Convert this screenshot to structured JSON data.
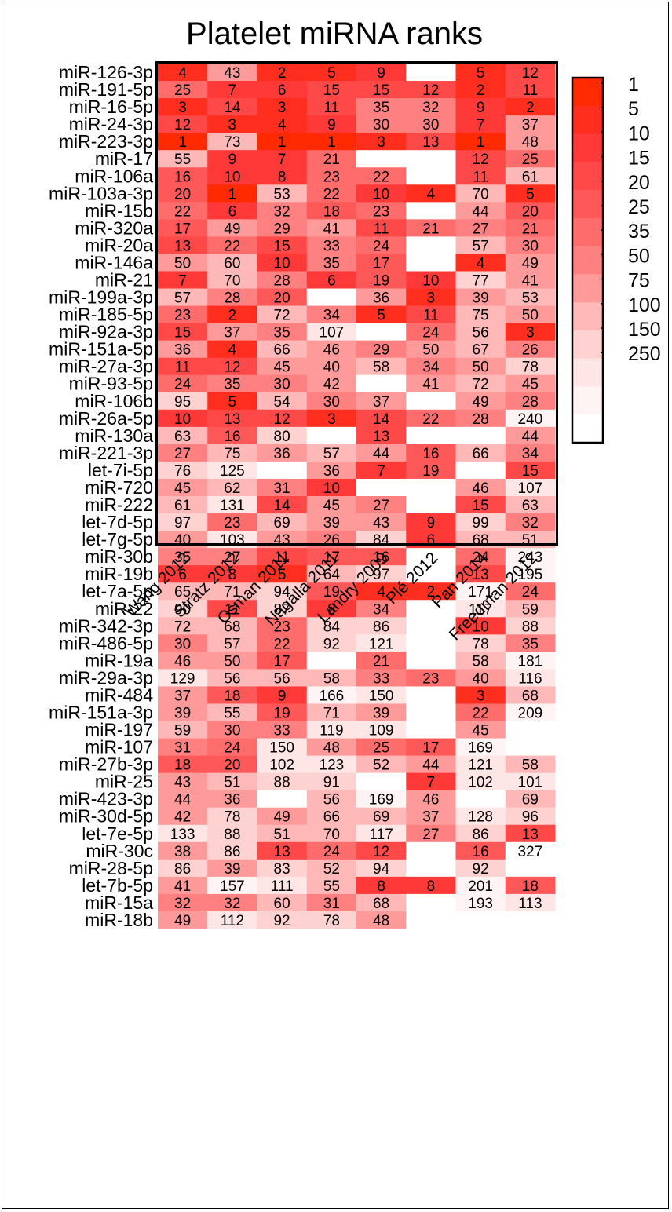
{
  "chart_data": {
    "type": "heatmap",
    "title": "Platelet miRNA ranks",
    "columns": [
      "Wang 2012",
      "Stratz 2012",
      "Osman 2011",
      "Nagalla 2011",
      "Landry 2009",
      "Plé 2012",
      "Pan 2014",
      "Freedman 2012"
    ],
    "rows": [
      {
        "label": "miR-126-3p",
        "values": [
          4,
          43,
          2,
          5,
          9,
          null,
          5,
          12
        ]
      },
      {
        "label": "miR-191-5p",
        "values": [
          25,
          7,
          6,
          15,
          15,
          12,
          2,
          11
        ]
      },
      {
        "label": "miR-16-5p",
        "values": [
          3,
          14,
          3,
          11,
          35,
          32,
          9,
          2
        ]
      },
      {
        "label": "miR-24-3p",
        "values": [
          12,
          3,
          4,
          9,
          30,
          30,
          7,
          37
        ]
      },
      {
        "label": "miR-223-3p",
        "values": [
          1,
          73,
          1,
          1,
          3,
          13,
          1,
          48
        ]
      },
      {
        "label": "miR-17",
        "values": [
          55,
          9,
          7,
          21,
          null,
          null,
          12,
          25
        ]
      },
      {
        "label": "miR-106a",
        "values": [
          16,
          10,
          8,
          23,
          22,
          null,
          11,
          61
        ]
      },
      {
        "label": "miR-103a-3p",
        "values": [
          20,
          1,
          53,
          22,
          10,
          4,
          70,
          5
        ]
      },
      {
        "label": "miR-15b",
        "values": [
          22,
          6,
          32,
          18,
          23,
          null,
          44,
          20
        ]
      },
      {
        "label": "miR-320a",
        "values": [
          17,
          49,
          29,
          41,
          11,
          21,
          27,
          21
        ]
      },
      {
        "label": "miR-20a",
        "values": [
          13,
          22,
          15,
          33,
          24,
          null,
          57,
          30
        ]
      },
      {
        "label": "miR-146a",
        "values": [
          50,
          60,
          10,
          35,
          17,
          null,
          4,
          49
        ]
      },
      {
        "label": "miR-21",
        "values": [
          7,
          70,
          28,
          6,
          19,
          10,
          77,
          41
        ]
      },
      {
        "label": "miR-199a-3p",
        "values": [
          57,
          28,
          20,
          null,
          36,
          3,
          39,
          53
        ]
      },
      {
        "label": "miR-185-5p",
        "values": [
          23,
          2,
          72,
          34,
          5,
          11,
          75,
          50
        ]
      },
      {
        "label": "miR-92a-3p",
        "values": [
          15,
          37,
          35,
          107,
          null,
          24,
          56,
          3
        ]
      },
      {
        "label": "miR-151a-5p",
        "values": [
          36,
          4,
          66,
          46,
          29,
          50,
          67,
          26
        ]
      },
      {
        "label": "miR-27a-3p",
        "values": [
          11,
          12,
          45,
          40,
          58,
          34,
          50,
          78
        ]
      },
      {
        "label": "miR-93-5p",
        "values": [
          24,
          35,
          30,
          42,
          null,
          41,
          72,
          45
        ]
      },
      {
        "label": "miR-106b",
        "values": [
          95,
          5,
          54,
          30,
          37,
          null,
          49,
          28
        ]
      },
      {
        "label": "miR-26a-5p",
        "values": [
          10,
          13,
          12,
          3,
          14,
          22,
          28,
          240
        ]
      },
      {
        "label": "miR-130a",
        "values": [
          63,
          16,
          80,
          null,
          13,
          null,
          null,
          44
        ]
      },
      {
        "label": "miR-221-3p",
        "values": [
          27,
          75,
          36,
          57,
          44,
          16,
          66,
          34
        ]
      },
      {
        "label": "let-7i-5p",
        "values": [
          76,
          125,
          null,
          36,
          7,
          19,
          null,
          15
        ]
      },
      {
        "label": "miR-720",
        "values": [
          45,
          62,
          31,
          10,
          null,
          null,
          46,
          107
        ]
      },
      {
        "label": "miR-222",
        "values": [
          61,
          131,
          14,
          45,
          27,
          null,
          15,
          63
        ]
      },
      {
        "label": "let-7d-5p",
        "values": [
          97,
          23,
          69,
          39,
          43,
          9,
          99,
          32
        ]
      },
      {
        "label": "let-7g-5p",
        "values": [
          40,
          103,
          43,
          26,
          84,
          6,
          68,
          51
        ]
      },
      {
        "label": "miR-30b",
        "values": [
          35,
          27,
          11,
          17,
          16,
          null,
          24,
          243
        ]
      },
      {
        "label": "miR-19b",
        "values": [
          6,
          8,
          5,
          64,
          97,
          null,
          13,
          195
        ]
      },
      {
        "label": "let-7a-5p",
        "values": [
          65,
          71,
          94,
          19,
          4,
          2,
          171,
          24
        ]
      },
      {
        "label": "miR-22",
        "values": [
          90,
          11,
          87,
          8,
          34,
          null,
          117,
          59
        ]
      },
      {
        "label": "miR-342-3p",
        "values": [
          72,
          68,
          23,
          84,
          86,
          null,
          10,
          88
        ]
      },
      {
        "label": "miR-486-5p",
        "values": [
          30,
          57,
          22,
          92,
          121,
          null,
          78,
          35
        ]
      },
      {
        "label": "miR-19a",
        "values": [
          46,
          50,
          17,
          null,
          21,
          null,
          58,
          181
        ]
      },
      {
        "label": "miR-29a-3p",
        "values": [
          129,
          56,
          56,
          58,
          33,
          23,
          40,
          116
        ]
      },
      {
        "label": "miR-484",
        "values": [
          37,
          18,
          9,
          166,
          150,
          null,
          3,
          68
        ]
      },
      {
        "label": "miR-151a-3p",
        "values": [
          39,
          55,
          19,
          71,
          39,
          null,
          22,
          209
        ]
      },
      {
        "label": "miR-197",
        "values": [
          59,
          30,
          33,
          119,
          109,
          null,
          45,
          null
        ]
      },
      {
        "label": "miR-107",
        "values": [
          31,
          24,
          150,
          48,
          25,
          17,
          169,
          null
        ]
      },
      {
        "label": "miR-27b-3p",
        "values": [
          18,
          20,
          102,
          123,
          52,
          44,
          121,
          58
        ]
      },
      {
        "label": "miR-25",
        "values": [
          43,
          51,
          88,
          91,
          null,
          7,
          102,
          101
        ]
      },
      {
        "label": "miR-423-3p",
        "values": [
          44,
          36,
          null,
          56,
          169,
          46,
          null,
          69
        ]
      },
      {
        "label": "miR-30d-5p",
        "values": [
          42,
          78,
          49,
          66,
          69,
          37,
          128,
          96
        ]
      },
      {
        "label": "let-7e-5p",
        "values": [
          133,
          88,
          51,
          70,
          117,
          27,
          86,
          13
        ]
      },
      {
        "label": "miR-30c",
        "values": [
          38,
          86,
          13,
          24,
          12,
          null,
          16,
          327
        ]
      },
      {
        "label": "miR-28-5p",
        "values": [
          86,
          39,
          83,
          52,
          94,
          null,
          92,
          null
        ]
      },
      {
        "label": "let-7b-5p",
        "values": [
          41,
          157,
          111,
          55,
          8,
          8,
          201,
          18
        ]
      },
      {
        "label": "miR-15a",
        "values": [
          32,
          32,
          60,
          31,
          68,
          null,
          193,
          113
        ]
      },
      {
        "label": "miR-18b",
        "values": [
          49,
          112,
          92,
          78,
          48,
          null,
          null,
          null
        ]
      }
    ],
    "colorscale": {
      "breaks": [
        1,
        5,
        10,
        15,
        20,
        25,
        35,
        50,
        75,
        100,
        150,
        250
      ],
      "colors": [
        "#ff2a00",
        "#ff2e1e",
        "#ff3838",
        "#ff4848",
        "#ff5858",
        "#ff6c6c",
        "#ff8080",
        "#ff9a9a",
        "#ffb8b8",
        "#ffd2d2",
        "#ffe6e6",
        "#fff4f4",
        "#ffffff"
      ],
      "labels": [
        "1",
        "5",
        "10",
        "15",
        "20",
        "25",
        "35",
        "50",
        "75",
        "100",
        "150",
        "250"
      ],
      "placement": "right"
    }
  }
}
